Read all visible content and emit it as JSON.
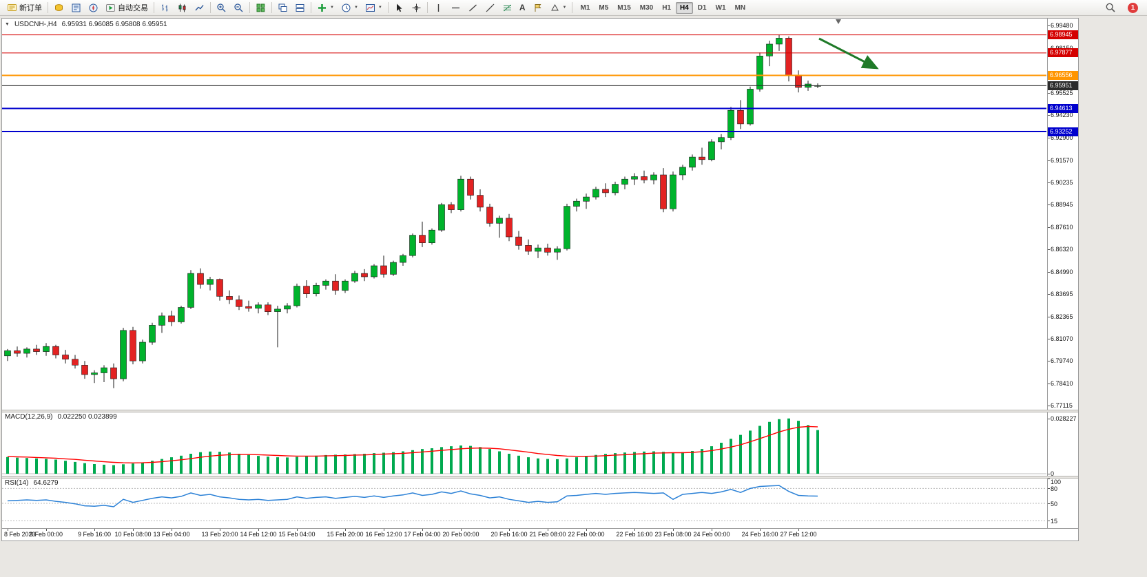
{
  "toolbar": {
    "new_order_label": "新订单",
    "autotrading_label": "自动交易",
    "timeframes": [
      "M1",
      "M5",
      "M15",
      "M30",
      "H1",
      "H4",
      "D1",
      "W1",
      "MN"
    ],
    "active_timeframe": "H4",
    "notification_count": "1",
    "icon_names": [
      "new-order",
      "symbols",
      "data-window",
      "navigator",
      "autotrading",
      "bars-chart",
      "candlestick-chart",
      "line-chart",
      "zoom-in",
      "zoom-out",
      "tile-windows",
      "cascade-windows",
      "arrange-windows",
      "indicators",
      "periods",
      "templates",
      "cursor",
      "crosshair",
      "vertical-line",
      "horizontal-line",
      "trendline",
      "equidistant-channel",
      "fibonacci",
      "text",
      "text-label",
      "shapes",
      "search",
      "notifications"
    ]
  },
  "chart_header": {
    "symbol": "USDCNH-,H4",
    "ohlc": "6.95931 6.96085 6.95808 6.95951"
  },
  "chart_data": {
    "type": "candlestick",
    "symbol": "USDCNH-",
    "period": "H4",
    "price_axis": {
      "min": 6.7688,
      "max": 6.999,
      "labels": [
        "6.99480",
        "6.98150",
        "6.95525",
        "6.94230",
        "6.92900",
        "6.91570",
        "6.90235",
        "6.88945",
        "6.87610",
        "6.86320",
        "6.84990",
        "6.83695",
        "6.82365",
        "6.81070",
        "6.79740",
        "6.78410",
        "6.77115"
      ]
    },
    "hlines": [
      {
        "price": 6.98945,
        "label": "6.98945",
        "color": "#d40000",
        "width": 1,
        "role": "resistance-1"
      },
      {
        "price": 6.97877,
        "label": "6.97877",
        "color": "#d40000",
        "width": 1,
        "role": "resistance-2"
      },
      {
        "price": 6.96556,
        "label": "6.96556",
        "color": "#ff9500",
        "width": 2,
        "role": "pivot"
      },
      {
        "price": 6.95951,
        "label": "6.95951",
        "color": "#2b2b2b",
        "width": 1,
        "role": "current-price"
      },
      {
        "price": 6.94613,
        "label": "6.94613",
        "color": "#0000cd",
        "width": 2,
        "role": "support-1"
      },
      {
        "price": 6.93252,
        "label": "6.93252",
        "color": "#0000cd",
        "width": 2,
        "role": "support-2"
      }
    ],
    "arrow_annotation": {
      "x1_frac": 0.782,
      "price1": 6.9872,
      "x2_frac": 0.838,
      "price2": 6.97,
      "color": "#1f7a28"
    },
    "shift_marker_frac": 0.801,
    "candles": [
      [
        6.8005,
        6.8045,
        6.7975,
        6.8035
      ],
      [
        6.8035,
        6.806,
        6.8,
        6.802
      ],
      [
        6.802,
        6.8055,
        6.7995,
        6.8045
      ],
      [
        6.8045,
        6.807,
        6.801,
        6.803
      ],
      [
        6.803,
        6.808,
        6.8005,
        6.806
      ],
      [
        6.806,
        6.807,
        6.799,
        6.801
      ],
      [
        6.801,
        6.804,
        6.796,
        6.7985
      ],
      [
        6.7985,
        6.801,
        6.793,
        6.795
      ],
      [
        6.795,
        6.7975,
        6.787,
        6.7895
      ],
      [
        6.7895,
        6.792,
        6.7845,
        6.7905
      ],
      [
        6.7905,
        6.795,
        6.785,
        6.7935
      ],
      [
        6.7935,
        6.796,
        6.7815,
        6.787
      ],
      [
        6.787,
        6.817,
        6.7855,
        6.8155
      ],
      [
        6.8155,
        6.8175,
        6.7955,
        6.7975
      ],
      [
        6.7975,
        6.81,
        6.796,
        6.8085
      ],
      [
        6.8085,
        6.82,
        6.807,
        6.8185
      ],
      [
        6.8185,
        6.826,
        6.814,
        6.824
      ],
      [
        6.824,
        6.827,
        6.818,
        6.8205
      ],
      [
        6.8205,
        6.83,
        6.8195,
        6.829
      ],
      [
        6.829,
        6.851,
        6.828,
        6.849
      ],
      [
        6.849,
        6.852,
        6.84,
        6.8425
      ],
      [
        6.8425,
        6.847,
        6.839,
        6.8455
      ],
      [
        6.8455,
        6.846,
        6.833,
        6.8355
      ],
      [
        6.8355,
        6.839,
        6.831,
        6.8335
      ],
      [
        6.8335,
        6.836,
        6.8275,
        6.8295
      ],
      [
        6.8295,
        6.833,
        6.8265,
        6.8285
      ],
      [
        6.8285,
        6.832,
        6.8255,
        6.8305
      ],
      [
        6.8305,
        6.832,
        6.8245,
        6.8265
      ],
      [
        6.8265,
        6.83,
        6.8055,
        6.828
      ],
      [
        6.828,
        6.8315,
        6.8255,
        6.83
      ],
      [
        6.83,
        6.843,
        6.829,
        6.8415
      ],
      [
        6.8415,
        6.845,
        6.8345,
        6.837
      ],
      [
        6.837,
        6.8435,
        6.8355,
        6.842
      ],
      [
        6.842,
        6.8455,
        6.8395,
        6.8445
      ],
      [
        6.8445,
        6.8485,
        6.8365,
        6.839
      ],
      [
        6.839,
        6.8455,
        6.8375,
        6.8445
      ],
      [
        6.8445,
        6.8505,
        6.8435,
        6.849
      ],
      [
        6.849,
        6.8515,
        6.8445,
        6.847
      ],
      [
        6.847,
        6.8545,
        6.846,
        6.8535
      ],
      [
        6.8535,
        6.8595,
        6.8465,
        6.8485
      ],
      [
        6.8485,
        6.8565,
        6.8475,
        6.8555
      ],
      [
        6.8555,
        6.8605,
        6.8535,
        6.8595
      ],
      [
        6.8595,
        6.8725,
        6.8585,
        6.8715
      ],
      [
        6.8715,
        6.8795,
        6.8645,
        6.867
      ],
      [
        6.867,
        6.8755,
        6.866,
        6.8745
      ],
      [
        6.8745,
        6.8905,
        6.8735,
        6.8895
      ],
      [
        6.8895,
        6.891,
        6.8845,
        6.8865
      ],
      [
        6.8865,
        6.9065,
        6.8855,
        6.9045
      ],
      [
        6.9045,
        6.906,
        6.8925,
        6.895
      ],
      [
        6.895,
        6.8985,
        6.8855,
        6.888
      ],
      [
        6.888,
        6.89,
        6.8765,
        6.8785
      ],
      [
        6.8785,
        6.883,
        6.87,
        6.8815
      ],
      [
        6.8815,
        6.884,
        6.868,
        6.8705
      ],
      [
        6.8705,
        6.874,
        6.863,
        6.8655
      ],
      [
        6.8655,
        6.869,
        6.86,
        6.862
      ],
      [
        6.862,
        6.866,
        6.858,
        6.864
      ],
      [
        6.864,
        6.8665,
        6.8595,
        6.8615
      ],
      [
        6.8615,
        6.865,
        6.857,
        6.8635
      ],
      [
        6.8635,
        6.89,
        6.8625,
        6.8885
      ],
      [
        6.8885,
        6.893,
        6.8855,
        6.8915
      ],
      [
        6.8915,
        6.896,
        6.887,
        6.894
      ],
      [
        6.894,
        6.9,
        6.8925,
        6.8985
      ],
      [
        6.8985,
        6.902,
        6.894,
        6.8965
      ],
      [
        6.8965,
        6.903,
        6.895,
        6.9015
      ],
      [
        6.9015,
        6.906,
        6.8985,
        6.9045
      ],
      [
        6.9045,
        6.908,
        6.901,
        6.906
      ],
      [
        6.906,
        6.9095,
        6.902,
        6.904
      ],
      [
        6.904,
        6.9085,
        6.9015,
        6.907
      ],
      [
        6.907,
        6.911,
        6.885,
        6.887
      ],
      [
        6.887,
        6.909,
        6.8855,
        6.907
      ],
      [
        6.907,
        6.913,
        6.904,
        6.9115
      ],
      [
        6.9115,
        6.919,
        6.9095,
        6.9175
      ],
      [
        6.9175,
        6.923,
        6.913,
        6.916
      ],
      [
        6.916,
        6.928,
        6.915,
        6.9265
      ],
      [
        6.9265,
        6.931,
        6.922,
        6.929
      ],
      [
        6.929,
        6.947,
        6.9275,
        6.945
      ],
      [
        6.945,
        6.951,
        6.934,
        6.937
      ],
      [
        6.937,
        6.959,
        6.936,
        6.9575
      ],
      [
        6.9575,
        6.979,
        6.956,
        6.977
      ],
      [
        6.977,
        6.986,
        6.971,
        6.984
      ],
      [
        6.984,
        6.9895,
        6.98,
        6.9875
      ],
      [
        6.9875,
        6.9885,
        6.962,
        6.9655
      ],
      [
        6.9655,
        6.9685,
        6.9555,
        6.9585
      ],
      [
        6.9585,
        6.9625,
        6.9565,
        6.9605
      ],
      [
        6.95931,
        6.96085,
        6.95808,
        6.95951
      ]
    ],
    "time_labels": [
      "8 Feb 2023",
      "9 Feb 00:00",
      "9 Feb 16:00",
      "10 Feb 08:00",
      "13 Feb 04:00",
      "13 Feb 20:00",
      "14 Feb 12:00",
      "15 Feb 04:00",
      "15 Feb 20:00",
      "16 Feb 12:00",
      "17 Feb 04:00",
      "20 Feb 00:00",
      "20 Feb 16:00",
      "21 Feb 08:00",
      "22 Feb 00:00",
      "22 Feb 16:00",
      "23 Feb 08:00",
      "24 Feb 00:00",
      "24 Feb 16:00",
      "27 Feb 12:00"
    ],
    "indicators": {
      "macd": {
        "label": "MACD(12,26,9)",
        "values": "0.022250 0.023899",
        "axis_max_label": "0.028227",
        "axis_min_label": "0",
        "scale_max": 0.0295,
        "histogram": [
          0.0085,
          0.0082,
          0.008,
          0.0078,
          0.0076,
          0.0072,
          0.0066,
          0.006,
          0.0054,
          0.0049,
          0.0046,
          0.0044,
          0.0048,
          0.0052,
          0.0058,
          0.0066,
          0.0075,
          0.0084,
          0.0092,
          0.0102,
          0.011,
          0.0113,
          0.0112,
          0.0108,
          0.0102,
          0.0096,
          0.0091,
          0.0087,
          0.0084,
          0.0083,
          0.0086,
          0.0089,
          0.0092,
          0.0095,
          0.0097,
          0.0098,
          0.01,
          0.0102,
          0.0105,
          0.0107,
          0.011,
          0.0114,
          0.012,
          0.0126,
          0.013,
          0.0136,
          0.014,
          0.0144,
          0.0142,
          0.0136,
          0.0126,
          0.0114,
          0.0102,
          0.0092,
          0.0084,
          0.0078,
          0.0075,
          0.0074,
          0.0078,
          0.0084,
          0.009,
          0.0096,
          0.0101,
          0.0105,
          0.0108,
          0.0111,
          0.0113,
          0.0114,
          0.0112,
          0.0108,
          0.011,
          0.0116,
          0.0126,
          0.014,
          0.0158,
          0.0178,
          0.0198,
          0.022,
          0.0244,
          0.0264,
          0.0278,
          0.0282,
          0.027,
          0.0248,
          0.02225
        ],
        "signal": [
          0.0088,
          0.0086,
          0.0085,
          0.0083,
          0.0081,
          0.0079,
          0.0076,
          0.0073,
          0.0069,
          0.0065,
          0.0061,
          0.0058,
          0.0056,
          0.0055,
          0.0056,
          0.0058,
          0.0061,
          0.0066,
          0.0071,
          0.0077,
          0.0084,
          0.009,
          0.0094,
          0.0097,
          0.0098,
          0.0098,
          0.0097,
          0.0095,
          0.0093,
          0.0091,
          0.009,
          0.009,
          0.009,
          0.0091,
          0.0092,
          0.0093,
          0.0095,
          0.0096,
          0.0098,
          0.01,
          0.0102,
          0.0104,
          0.0107,
          0.0111,
          0.0115,
          0.0119,
          0.0123,
          0.0127,
          0.013,
          0.0131,
          0.013,
          0.0127,
          0.0122,
          0.0116,
          0.011,
          0.0103,
          0.0098,
          0.0093,
          0.009,
          0.0089,
          0.0089,
          0.009,
          0.0092,
          0.0095,
          0.0097,
          0.01,
          0.0102,
          0.0105,
          0.0106,
          0.0107,
          0.0107,
          0.0109,
          0.0112,
          0.0118,
          0.0126,
          0.0136,
          0.0148,
          0.0163,
          0.0179,
          0.0196,
          0.0213,
          0.0227,
          0.0237,
          0.0241,
          0.0239
        ]
      },
      "rsi": {
        "label": "RSI(14)",
        "value": "64.6279",
        "axis_labels": [
          "100",
          "80",
          "50",
          "15"
        ],
        "levels": [
          80,
          50,
          15
        ],
        "values": [
          55,
          56,
          57,
          56,
          57,
          54,
          52,
          49,
          45,
          44,
          46,
          43,
          58,
          52,
          56,
          60,
          63,
          61,
          64,
          71,
          66,
          68,
          63,
          61,
          58,
          57,
          58,
          56,
          57,
          58,
          63,
          60,
          62,
          63,
          60,
          62,
          64,
          62,
          65,
          62,
          65,
          67,
          71,
          66,
          68,
          73,
          70,
          75,
          69,
          66,
          61,
          63,
          58,
          55,
          52,
          54,
          52,
          53,
          65,
          66,
          68,
          70,
          68,
          70,
          71,
          72,
          71,
          70,
          71,
          58,
          68,
          70,
          72,
          70,
          73,
          78,
          72,
          80,
          84,
          85,
          86,
          74,
          66,
          65,
          64.6279
        ]
      }
    },
    "colors": {
      "up": "#00b32c",
      "down": "#e32222",
      "wick": "#1a1a1a",
      "macd_hist": "#00a94f",
      "macd_signal": "#ff0000",
      "rsi_line": "#2a80d6"
    }
  }
}
